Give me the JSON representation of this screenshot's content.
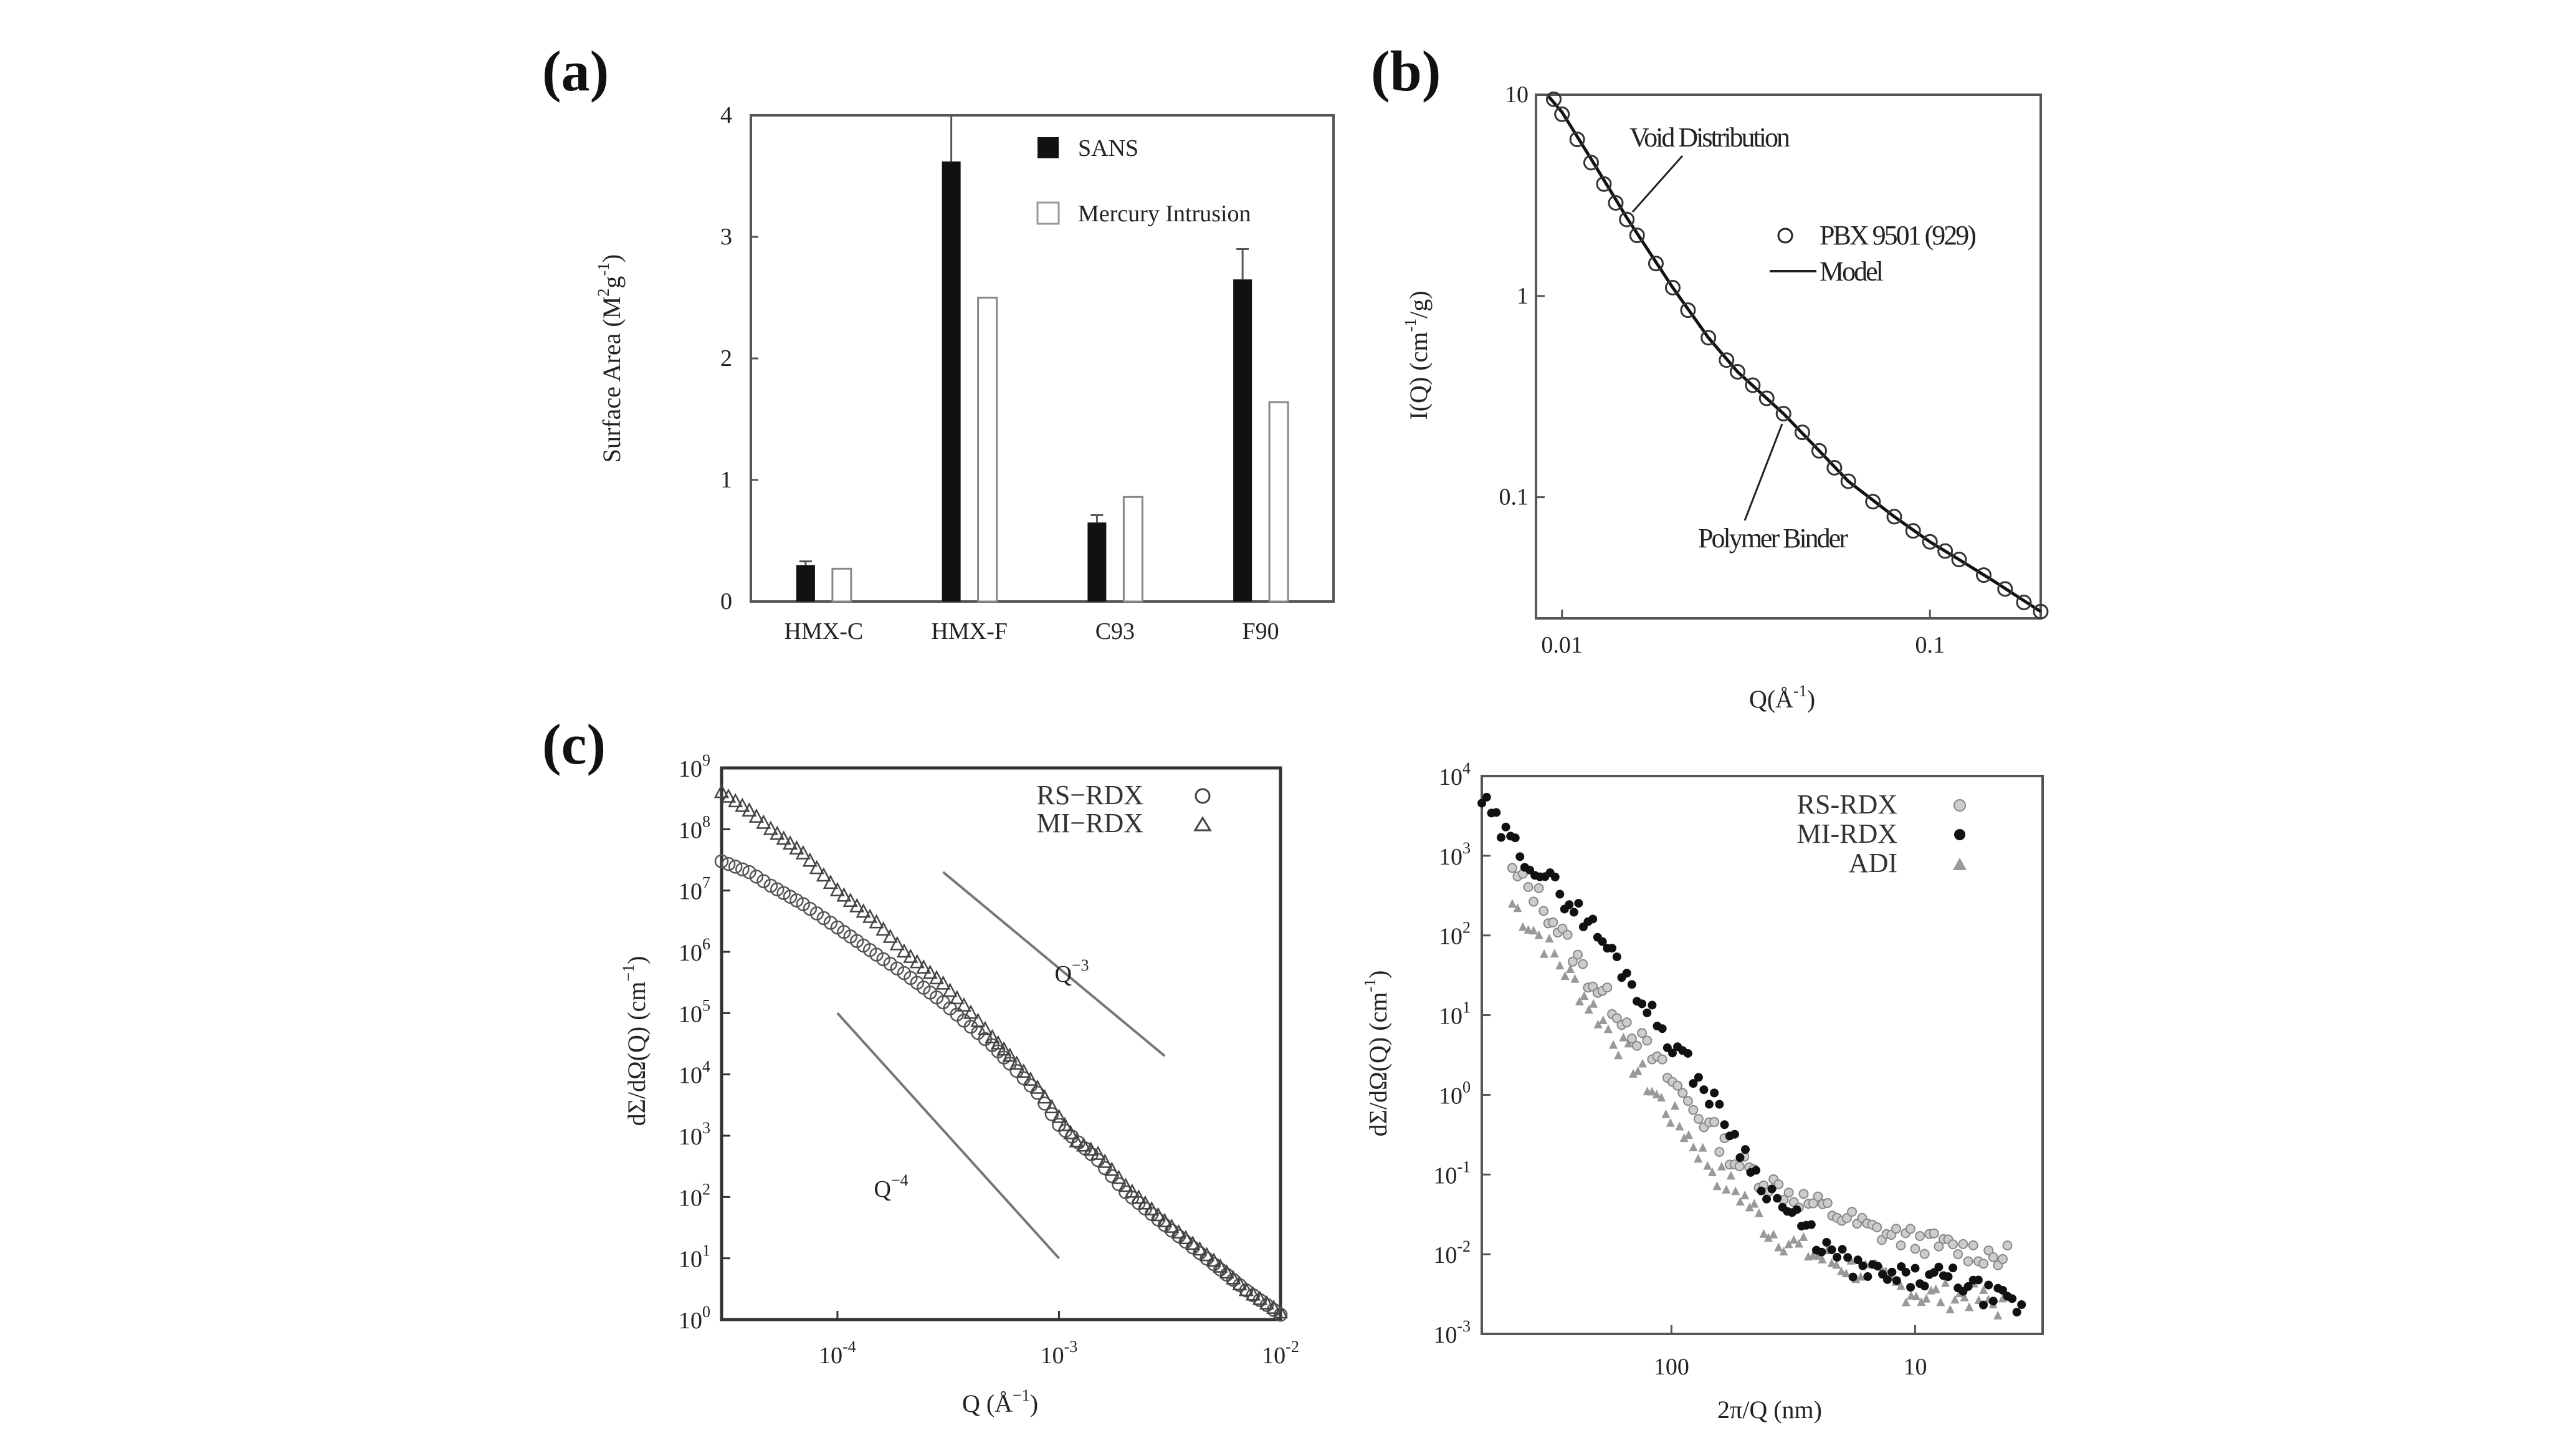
{
  "chart_data": [
    {
      "type": "bar",
      "panel_label": "(a)",
      "ylabel_main": "Surface Area (M",
      "ylabel_exp1": "2",
      "ylabel_mid": "g",
      "ylabel_exp2": "-1",
      "ylabel_end": ")",
      "ylim": [
        0,
        4
      ],
      "yticks": [
        "0",
        "1",
        "2",
        "3",
        "4"
      ],
      "categories": [
        "HMX-C",
        "HMX-F",
        "C93",
        "F90"
      ],
      "legend_position": "top-right",
      "series": [
        {
          "name": "SANS",
          "color": "#111111",
          "values": [
            0.3,
            3.62,
            0.65,
            2.65
          ],
          "errors": [
            0.03,
            0.38,
            0.06,
            0.25
          ]
        },
        {
          "name": "Mercury Intrusion",
          "color": "#ffffff",
          "values": [
            0.27,
            2.5,
            0.86,
            1.64
          ]
        }
      ]
    },
    {
      "type": "scatter",
      "panel_label": "(b)",
      "xscale": "log",
      "yscale": "log",
      "xlim": [
        0.0085,
        0.2
      ],
      "ylim": [
        0.025,
        10
      ],
      "xticks": [
        "0.01",
        "0.1"
      ],
      "yticks": [
        "0.1",
        "1",
        "10"
      ],
      "ylabel_main": "I(Q) (cm",
      "ylabel_exp": "-1",
      "ylabel_end": "/g)",
      "xlabel_main": "Q(Å",
      "xlabel_exp": "-1",
      "xlabel_end": ")",
      "legend_position": "right",
      "annotations": [
        "Void Distribution",
        "Polymer Binder"
      ],
      "series": [
        {
          "name": "PBX 9501 (929)",
          "marker": "circle",
          "points": [
            [
              0.0095,
              9.5
            ],
            [
              0.01,
              8
            ],
            [
              0.011,
              6
            ],
            [
              0.012,
              4.6
            ],
            [
              0.013,
              3.6
            ],
            [
              0.014,
              2.9
            ],
            [
              0.015,
              2.4
            ],
            [
              0.016,
              2.0
            ],
            [
              0.018,
              1.45
            ],
            [
              0.02,
              1.1
            ],
            [
              0.022,
              0.85
            ],
            [
              0.025,
              0.62
            ],
            [
              0.028,
              0.48
            ],
            [
              0.03,
              0.42
            ],
            [
              0.033,
              0.36
            ],
            [
              0.036,
              0.31
            ],
            [
              0.04,
              0.26
            ],
            [
              0.045,
              0.21
            ],
            [
              0.05,
              0.17
            ],
            [
              0.055,
              0.14
            ],
            [
              0.06,
              0.12
            ],
            [
              0.07,
              0.095
            ],
            [
              0.08,
              0.08
            ],
            [
              0.09,
              0.068
            ],
            [
              0.1,
              0.06
            ],
            [
              0.11,
              0.054
            ],
            [
              0.12,
              0.049
            ],
            [
              0.14,
              0.041
            ],
            [
              0.16,
              0.035
            ],
            [
              0.18,
              0.03
            ],
            [
              0.2,
              0.027
            ]
          ]
        },
        {
          "name": "Model",
          "marker": "line",
          "points": [
            [
              0.0092,
              9.8
            ],
            [
              0.01,
              8.2
            ],
            [
              0.012,
              4.8
            ],
            [
              0.015,
              2.45
            ],
            [
              0.02,
              1.1
            ],
            [
              0.025,
              0.62
            ],
            [
              0.03,
              0.42
            ],
            [
              0.04,
              0.26
            ],
            [
              0.05,
              0.17
            ],
            [
              0.06,
              0.12
            ],
            [
              0.08,
              0.08
            ],
            [
              0.1,
              0.06
            ],
            [
              0.12,
              0.049
            ],
            [
              0.15,
              0.038
            ],
            [
              0.2,
              0.027
            ]
          ]
        }
      ]
    },
    {
      "type": "scatter",
      "panel_label": "(c)",
      "xscale": "log",
      "yscale": "log",
      "xlim": [
        3e-05,
        0.01
      ],
      "ylim": [
        1,
        1000000000
      ],
      "xticks": [
        {
          "base": "10",
          "exp": "-4"
        },
        {
          "base": "10",
          "exp": "-3"
        },
        {
          "base": "10",
          "exp": "-2"
        }
      ],
      "yticks": [
        {
          "base": "10",
          "exp": "0"
        },
        {
          "base": "10",
          "exp": "1"
        },
        {
          "base": "10",
          "exp": "2"
        },
        {
          "base": "10",
          "exp": "3"
        },
        {
          "base": "10",
          "exp": "4"
        },
        {
          "base": "10",
          "exp": "5"
        },
        {
          "base": "10",
          "exp": "6"
        },
        {
          "base": "10",
          "exp": "7"
        },
        {
          "base": "10",
          "exp": "8"
        },
        {
          "base": "10",
          "exp": "9"
        }
      ],
      "ylabel_main": "dΣ/dΩ(Q) (cm",
      "ylabel_exp": "−1",
      "ylabel_end": ")",
      "xlabel_main": "Q (Å",
      "xlabel_exp": "−1",
      "xlabel_end": ")",
      "legend_position": "top-right",
      "guides": [
        {
          "label": "Q",
          "label_exp": "−3",
          "from": [
            0.0003,
            20000000
          ],
          "to": [
            0.003,
            20000
          ]
        },
        {
          "label": "Q",
          "label_exp": "−4",
          "from": [
            0.0001,
            100000
          ],
          "to": [
            0.001,
            10
          ]
        }
      ],
      "series": [
        {
          "name": "RS−RDX",
          "marker": "circle",
          "points": [
            [
              3e-05,
              30000000
            ],
            [
              4e-05,
              20000000
            ],
            [
              5e-05,
              12000000
            ],
            [
              7e-05,
              6000000
            ],
            [
              0.0001,
              2500000
            ],
            [
              0.00015,
              900000
            ],
            [
              0.0002,
              450000
            ],
            [
              0.0003,
              150000
            ],
            [
              0.0004,
              60000
            ],
            [
              0.0005,
              30000
            ],
            [
              0.0006,
              15000
            ],
            [
              0.0008,
              5000
            ],
            [
              0.001,
              1500
            ],
            [
              0.0015,
              400
            ],
            [
              0.002,
              120
            ],
            [
              0.003,
              35
            ],
            [
              0.005,
              8
            ],
            [
              0.007,
              3
            ],
            [
              0.01,
              1.2
            ]
          ]
        },
        {
          "name": "MI−RDX",
          "marker": "triangle",
          "points": [
            [
              3e-05,
              400000000
            ],
            [
              4e-05,
              200000000
            ],
            [
              5e-05,
              100000000
            ],
            [
              7e-05,
              40000000
            ],
            [
              0.0001,
              10000000
            ],
            [
              0.00015,
              3000000
            ],
            [
              0.0002,
              1000000
            ],
            [
              0.0003,
              300000
            ],
            [
              0.0004,
              100000
            ],
            [
              0.0005,
              40000
            ],
            [
              0.0006,
              20000
            ],
            [
              0.0008,
              6000
            ],
            [
              0.001,
              2000
            ],
            [
              0.0012,
              800
            ],
            [
              0.0015,
              500
            ],
            [
              0.002,
              150
            ],
            [
              0.003,
              40
            ],
            [
              0.005,
              9
            ],
            [
              0.007,
              3
            ],
            [
              0.01,
              1.3
            ]
          ]
        }
      ]
    },
    {
      "type": "scatter",
      "panel_label": "",
      "xscale": "log",
      "yscale": "log",
      "xlim": [
        600,
        3
      ],
      "ylim": [
        0.001,
        10000
      ],
      "xticks": [
        "100",
        "10"
      ],
      "yticks": [
        {
          "base": "10",
          "exp": "-3"
        },
        {
          "base": "10",
          "exp": "-2"
        },
        {
          "base": "10",
          "exp": "-1"
        },
        {
          "base": "10",
          "exp": "0"
        },
        {
          "base": "10",
          "exp": "1"
        },
        {
          "base": "10",
          "exp": "2"
        },
        {
          "base": "10",
          "exp": "3"
        },
        {
          "base": "10",
          "exp": "4"
        }
      ],
      "ylabel_main": "dΣ/dΩ(Q) (cm",
      "ylabel_exp": "-1",
      "ylabel_end": ")",
      "xlabel": "2π/Q (nm)",
      "legend_position": "top-right",
      "series": [
        {
          "name": "RS-RDX",
          "marker": "circle-gray",
          "points": [
            [
              450,
              600
            ],
            [
              350,
              300
            ],
            [
              280,
              100
            ],
            [
              220,
              30
            ],
            [
              160,
              10
            ],
            [
              120,
              3
            ],
            [
              90,
              1
            ],
            [
              70,
              0.4
            ],
            [
              55,
              0.15
            ],
            [
              40,
              0.08
            ],
            [
              30,
              0.05
            ],
            [
              20,
              0.03
            ],
            [
              15,
              0.02
            ],
            [
              10,
              0.015
            ],
            [
              7,
              0.012
            ],
            [
              5,
              0.01
            ],
            [
              4,
              0.009
            ]
          ]
        },
        {
          "name": "MI-RDX",
          "marker": "dot-black",
          "points": [
            [
              600,
              5000
            ],
            [
              500,
              2000
            ],
            [
              400,
              1000
            ],
            [
              300,
              400
            ],
            [
              220,
              150
            ],
            [
              160,
              40
            ],
            [
              120,
              10
            ],
            [
              90,
              3
            ],
            [
              70,
              1
            ],
            [
              55,
              0.3
            ],
            [
              45,
              0.1
            ],
            [
              35,
              0.04
            ],
            [
              28,
              0.02
            ],
            [
              22,
              0.01
            ],
            [
              18,
              0.007
            ],
            [
              13,
              0.005
            ],
            [
              10,
              0.005
            ],
            [
              7,
              0.005
            ],
            [
              5,
              0.003
            ],
            [
              3.5,
              0.002
            ]
          ]
        },
        {
          "name": "ADI",
          "marker": "triangle-gray",
          "points": [
            [
              450,
              250
            ],
            [
              350,
              100
            ],
            [
              260,
              30
            ],
            [
              200,
              10
            ],
            [
              150,
              3
            ],
            [
              110,
              0.8
            ],
            [
              85,
              0.3
            ],
            [
              65,
              0.1
            ],
            [
              50,
              0.05
            ],
            [
              40,
              0.02
            ],
            [
              30,
              0.012
            ],
            [
              22,
              0.008
            ],
            [
              16,
              0.006
            ],
            [
              12,
              0.004
            ],
            [
              9,
              0.003
            ],
            [
              6,
              0.003
            ],
            [
              4,
              0.002
            ]
          ]
        }
      ]
    }
  ]
}
